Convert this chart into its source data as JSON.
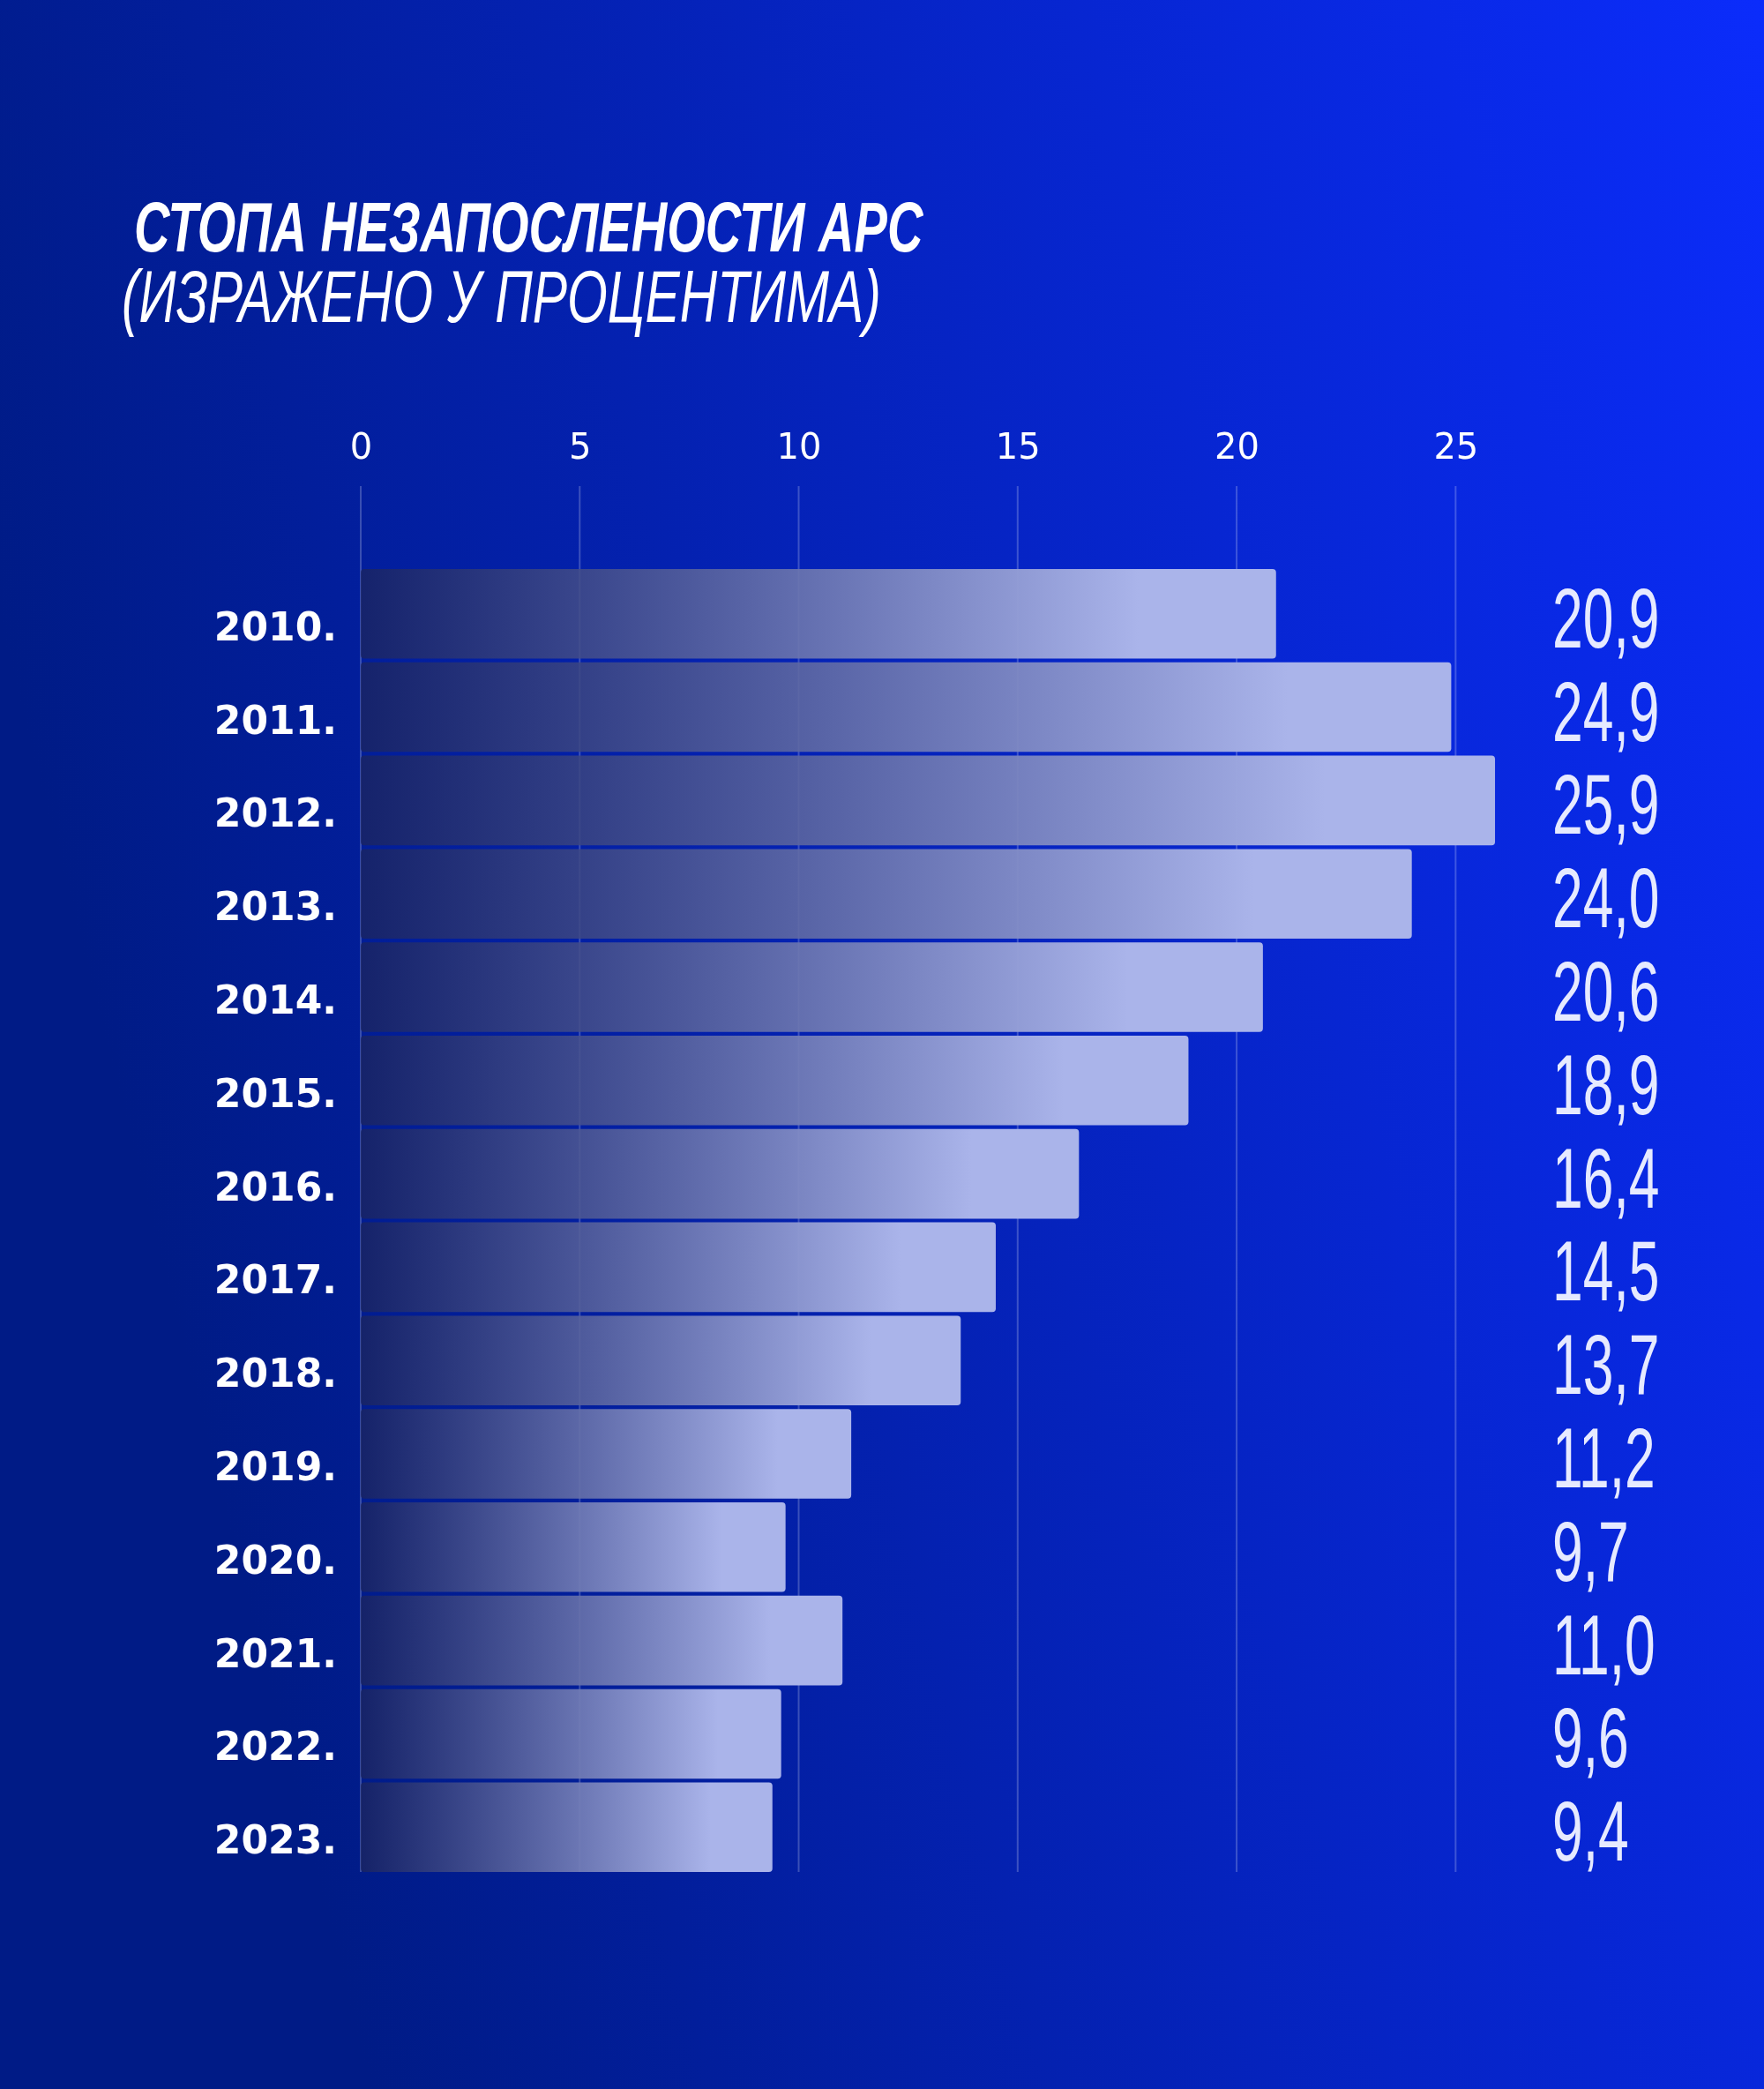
{
  "chart_data": {
    "type": "bar",
    "orientation": "horizontal",
    "title": "СТОПА НЕЗАПОСЛЕНОСТИ АРС",
    "subtitle": "(ИЗРАЖЕНО У ПРОЦЕНТИМА)",
    "categories": [
      "2010.",
      "2011.",
      "2012.",
      "2013.",
      "2014.",
      "2015.",
      "2016.",
      "2017.",
      "2018.",
      "2019.",
      "2020.",
      "2021.",
      "2022.",
      "2023."
    ],
    "values": [
      20.9,
      24.9,
      25.9,
      24.0,
      20.6,
      18.9,
      16.4,
      14.5,
      13.7,
      11.2,
      9.7,
      11.0,
      9.6,
      9.4
    ],
    "value_labels": [
      "20,9",
      "24,9",
      "25,9",
      "24,0",
      "20,6",
      "18,9",
      "16,4",
      "14,5",
      "13,7",
      "11,2",
      "9,7",
      "11,0",
      "9,6",
      "9,4"
    ],
    "color": "#aab4ea",
    "xlim": [
      0,
      26
    ],
    "xticks": [
      0,
      5,
      10,
      15,
      20,
      25
    ],
    "grid": "x"
  }
}
